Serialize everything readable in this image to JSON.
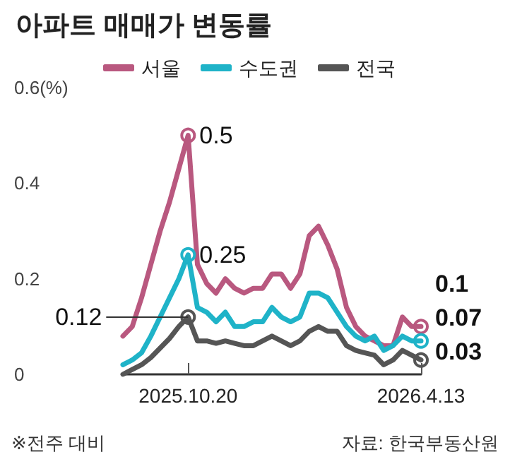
{
  "chart_data": {
    "type": "line",
    "title": "아파트 매매가 변동률",
    "categories": [
      null,
      null,
      null,
      null,
      null,
      null,
      null,
      "2025.10.20",
      null,
      null,
      null,
      null,
      null,
      null,
      null,
      null,
      null,
      null,
      null,
      null,
      null,
      null,
      null,
      null,
      null,
      null,
      null,
      null,
      null,
      null,
      null,
      null,
      "2026.4.13"
    ],
    "series": [
      {
        "name": "서울",
        "color": "#b9587f",
        "values": [
          0.08,
          0.1,
          0.16,
          0.23,
          0.3,
          0.36,
          0.43,
          0.5,
          0.23,
          0.19,
          0.17,
          0.2,
          0.18,
          0.17,
          0.18,
          0.18,
          0.21,
          0.21,
          0.18,
          0.21,
          0.29,
          0.31,
          0.27,
          0.22,
          0.14,
          0.1,
          0.08,
          0.07,
          0.06,
          0.06,
          0.12,
          0.1,
          0.1
        ]
      },
      {
        "name": "수도권",
        "color": "#1fb3c8",
        "values": [
          0.02,
          0.03,
          0.045,
          0.08,
          0.12,
          0.16,
          0.2,
          0.25,
          0.14,
          0.13,
          0.11,
          0.13,
          0.1,
          0.1,
          0.11,
          0.11,
          0.14,
          0.12,
          0.11,
          0.12,
          0.17,
          0.17,
          0.16,
          0.13,
          0.1,
          0.08,
          0.07,
          0.08,
          0.05,
          0.06,
          0.08,
          0.07,
          0.07
        ]
      },
      {
        "name": "전국",
        "color": "#555555",
        "values": [
          0,
          0.01,
          0.02,
          0.035,
          0.055,
          0.075,
          0.1,
          0.12,
          0.07,
          0.07,
          0.065,
          0.07,
          0.065,
          0.06,
          0.06,
          0.07,
          0.08,
          0.07,
          0.06,
          0.07,
          0.09,
          0.1,
          0.09,
          0.09,
          0.06,
          0.05,
          0.045,
          0.04,
          0.02,
          0.03,
          0.05,
          0.04,
          0.03
        ]
      }
    ],
    "ylim": [
      0,
      0.6
    ],
    "yticks": [
      0,
      0.2,
      0.4,
      {
        "value": 0.6,
        "label": "0.6(%)"
      }
    ],
    "legend": "top",
    "annotations": [
      {
        "text": "0.5",
        "x": "2025.10.20",
        "y": 0.5
      },
      {
        "text": "0.25",
        "x": "2025.10.20",
        "y": 0.25
      },
      {
        "text": "0.12",
        "x": "2025.10.20",
        "y": 0.12
      },
      {
        "text": "0.1",
        "x": "2026.4.13",
        "y": 0.1
      },
      {
        "text": "0.07",
        "x": "2026.4.13",
        "y": 0.07
      },
      {
        "text": "0.03",
        "x": "2026.4.13",
        "y": 0.03
      },
      "※전주 대비",
      "자료: 한국부동산원"
    ]
  }
}
